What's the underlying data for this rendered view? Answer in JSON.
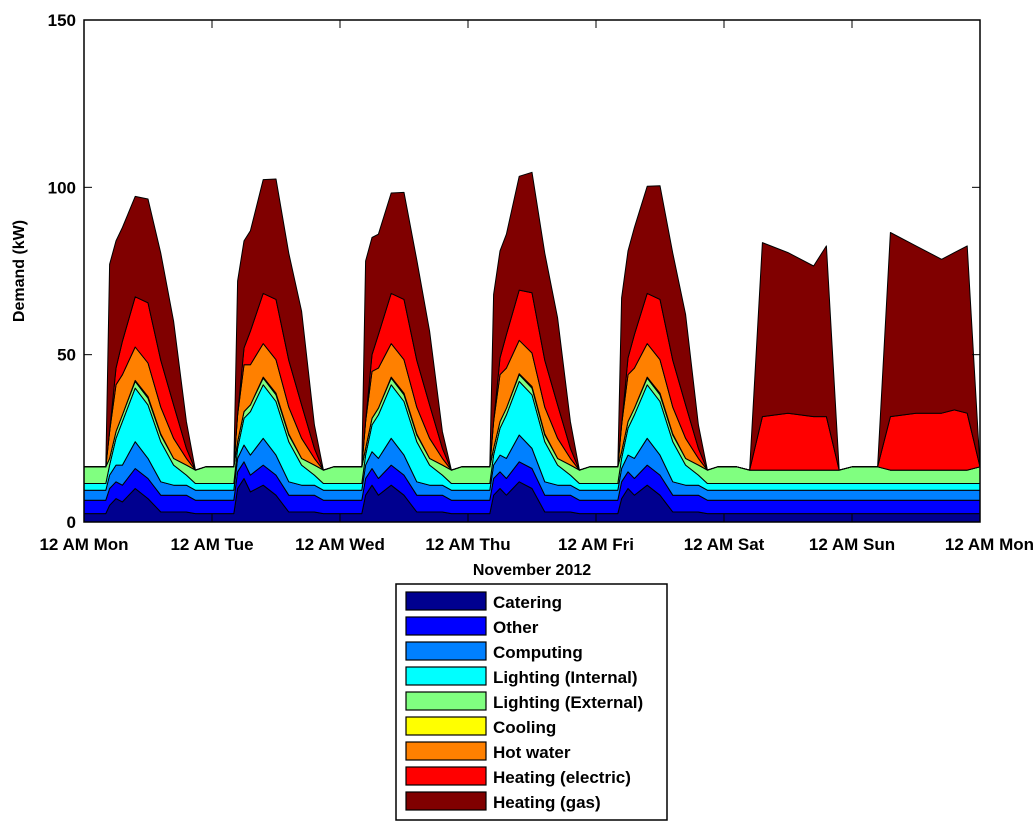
{
  "chart_data": {
    "type": "area",
    "stacked": true,
    "title": "",
    "xlabel": "November 2012",
    "ylabel": "Demand (kW)",
    "ylim": [
      0,
      150
    ],
    "yticks": [
      0,
      50,
      100,
      150
    ],
    "xlim": [
      0,
      7
    ],
    "xticks": [
      0,
      1,
      2,
      3,
      4,
      5,
      6,
      7
    ],
    "xtick_labels": [
      "12 AM Mon",
      "12 AM Tue",
      "12 AM Wed",
      "12 AM Thu",
      "12 AM Fri",
      "12 AM Sat",
      "12 AM Sun",
      "12 AM Mon"
    ],
    "grid": false,
    "legend_position": "below",
    "x_unit": "days since 12 AM Mon",
    "x": [
      0,
      0.1,
      0.17,
      0.2,
      0.25,
      0.3,
      0.4,
      0.5,
      0.6,
      0.7,
      0.8,
      0.87,
      0.95,
      1.0,
      1.1,
      1.17,
      1.2,
      1.25,
      1.3,
      1.4,
      1.5,
      1.6,
      1.7,
      1.8,
      1.87,
      1.95,
      2.0,
      2.1,
      2.17,
      2.2,
      2.25,
      2.3,
      2.4,
      2.5,
      2.6,
      2.7,
      2.8,
      2.87,
      2.95,
      3.0,
      3.1,
      3.17,
      3.2,
      3.25,
      3.3,
      3.4,
      3.5,
      3.6,
      3.7,
      3.8,
      3.87,
      3.95,
      4.0,
      4.1,
      4.17,
      4.2,
      4.25,
      4.3,
      4.4,
      4.5,
      4.6,
      4.7,
      4.8,
      4.87,
      4.95,
      5.0,
      5.1,
      5.2,
      5.3,
      5.5,
      5.7,
      5.8,
      5.9,
      6.0,
      6.1,
      6.2,
      6.3,
      6.5,
      6.7,
      6.8,
      6.9,
      7.0
    ],
    "series": [
      {
        "name": "Catering",
        "color": "#00008f",
        "values": [
          2.5,
          2.5,
          2.5,
          5,
          7,
          6,
          10,
          7,
          3,
          3,
          3,
          2.5,
          2.5,
          2.5,
          2.5,
          2.5,
          10,
          13,
          9,
          11,
          8,
          3,
          3,
          3,
          2.5,
          2.5,
          2.5,
          2.5,
          2.5,
          8,
          11,
          8,
          11,
          8,
          3,
          3,
          3,
          2.5,
          2.5,
          2.5,
          2.5,
          2.5,
          8,
          10,
          8,
          12,
          10,
          3,
          3,
          3,
          2.5,
          2.5,
          2.5,
          2.5,
          2.5,
          7,
          10,
          8,
          11,
          8,
          3,
          3,
          3,
          2.5,
          2.5,
          2.5,
          2.5,
          2.5,
          2.5,
          2.5,
          2.5,
          2.5,
          2.5,
          2.5,
          2.5,
          2.5,
          2.5,
          2.5,
          2.5,
          2.5,
          2.5,
          2.5
        ]
      },
      {
        "name": "Other",
        "color": "#0000ff",
        "values": [
          4,
          4,
          4,
          5,
          5,
          5,
          6,
          6,
          5,
          5,
          5,
          4,
          4,
          4,
          4,
          4,
          5,
          5,
          5,
          6,
          6,
          5,
          5,
          5,
          4,
          4,
          4,
          4,
          4,
          5,
          5,
          5,
          6,
          6,
          5,
          5,
          5,
          4,
          4,
          4,
          4,
          4,
          5,
          5,
          5,
          6,
          6,
          5,
          5,
          5,
          4,
          4,
          4,
          4,
          4,
          5,
          5,
          5,
          6,
          6,
          5,
          5,
          5,
          4,
          4,
          4,
          4,
          4,
          4,
          4,
          4,
          4,
          4,
          4,
          4,
          4,
          4,
          4,
          4,
          4,
          4,
          4
        ]
      },
      {
        "name": "Computing",
        "color": "#0080ff",
        "values": [
          3,
          3,
          3,
          4,
          5,
          6,
          8,
          6,
          4,
          3,
          3,
          3,
          3,
          3,
          3,
          3,
          4,
          5,
          6,
          8,
          6,
          4,
          3,
          3,
          3,
          3,
          3,
          3,
          3,
          4,
          5,
          6,
          8,
          6,
          4,
          3,
          3,
          3,
          3,
          3,
          3,
          3,
          4,
          5,
          6,
          8,
          6,
          4,
          3,
          3,
          3,
          3,
          3,
          3,
          3,
          4,
          5,
          6,
          8,
          6,
          4,
          3,
          3,
          3,
          3,
          3,
          3,
          3,
          3,
          3,
          3,
          3,
          3,
          3,
          3,
          3,
          3,
          3,
          3,
          3,
          3,
          3
        ]
      },
      {
        "name": "Lighting (Internal)",
        "color": "#00ffff",
        "values": [
          2,
          2,
          2,
          3,
          8,
          13,
          16,
          16,
          12,
          6,
          3,
          2,
          2,
          2,
          2,
          2,
          3,
          8,
          13,
          16,
          16,
          12,
          6,
          3,
          2,
          2,
          2,
          2,
          2,
          3,
          8,
          13,
          16,
          16,
          12,
          6,
          3,
          2,
          2,
          2,
          2,
          2,
          3,
          8,
          13,
          16,
          16,
          12,
          6,
          3,
          2,
          2,
          2,
          2,
          2,
          3,
          8,
          13,
          16,
          16,
          12,
          6,
          3,
          2,
          2,
          2,
          2,
          2,
          2,
          2,
          2,
          2,
          2,
          2,
          2,
          2,
          2,
          2,
          2,
          2,
          2,
          2
        ]
      },
      {
        "name": "Lighting (External)",
        "color": "#80ff80",
        "values": [
          5,
          5,
          5,
          2,
          2,
          2,
          2,
          2,
          2,
          2,
          3,
          4,
          5,
          5,
          5,
          5,
          2,
          2,
          2,
          2,
          2,
          2,
          2,
          3,
          4,
          5,
          5,
          5,
          5,
          2,
          2,
          2,
          2,
          2,
          2,
          2,
          3,
          4,
          5,
          5,
          5,
          5,
          2,
          2,
          2,
          2,
          2,
          2,
          2,
          3,
          4,
          5,
          5,
          5,
          5,
          2,
          2,
          2,
          2,
          2,
          2,
          2,
          3,
          4,
          5,
          5,
          5,
          4,
          4,
          4,
          4,
          4,
          4,
          5,
          5,
          5,
          4,
          4,
          4,
          4,
          4,
          5
        ]
      },
      {
        "name": "Cooling",
        "color": "#ffff00",
        "values": [
          0,
          0,
          0,
          0,
          0,
          0,
          0.3,
          0.5,
          0.3,
          0,
          0,
          0,
          0,
          0,
          0,
          0,
          0,
          0,
          0,
          0.3,
          0.5,
          0.3,
          0,
          0,
          0,
          0,
          0,
          0,
          0,
          0,
          0,
          0,
          0.3,
          0.5,
          0.3,
          0,
          0,
          0,
          0,
          0,
          0,
          0,
          0,
          0,
          0,
          0.3,
          0.5,
          0.3,
          0,
          0,
          0,
          0,
          0,
          0,
          0,
          0,
          0,
          0,
          0.3,
          0.5,
          0.3,
          0,
          0,
          0,
          0,
          0,
          0,
          0,
          0,
          0,
          0,
          0,
          0,
          0,
          0,
          0,
          0,
          0,
          0,
          0,
          0,
          0
        ]
      },
      {
        "name": "Hot water",
        "color": "#ff8000",
        "values": [
          0,
          0,
          0,
          8,
          14,
          12,
          10,
          10,
          8,
          6,
          2,
          0,
          0,
          0,
          0,
          0,
          8,
          14,
          12,
          10,
          10,
          8,
          6,
          2,
          0,
          0,
          0,
          0,
          0,
          8,
          14,
          12,
          10,
          10,
          8,
          6,
          2,
          0,
          0,
          0,
          0,
          0,
          8,
          14,
          12,
          10,
          10,
          8,
          6,
          2,
          0,
          0,
          0,
          0,
          0,
          8,
          14,
          12,
          10,
          10,
          8,
          6,
          2,
          0,
          0,
          0,
          0,
          0,
          0,
          0,
          0,
          0,
          0,
          0,
          0,
          0,
          0,
          0,
          0,
          0,
          0,
          0
        ]
      },
      {
        "name": "Heating (electric)",
        "color": "#ff0000",
        "values": [
          0,
          0,
          0,
          0,
          5,
          10,
          15,
          18,
          14,
          10,
          3,
          0,
          0,
          0,
          0,
          0,
          0,
          5,
          10,
          15,
          18,
          14,
          10,
          3,
          0,
          0,
          0,
          0,
          0,
          0,
          5,
          10,
          15,
          18,
          14,
          10,
          3,
          0,
          0,
          0,
          0,
          0,
          0,
          5,
          10,
          15,
          18,
          14,
          10,
          3,
          0,
          0,
          0,
          0,
          0,
          0,
          5,
          10,
          15,
          18,
          14,
          10,
          3,
          0,
          0,
          0,
          0,
          0,
          16,
          17,
          16,
          16,
          0,
          0,
          0,
          0,
          16,
          17,
          17,
          18,
          17,
          0
        ]
      },
      {
        "name": "Heating (gas)",
        "color": "#800000",
        "values": [
          0,
          0,
          0,
          50,
          38,
          34,
          30,
          31,
          32,
          25,
          8,
          0,
          0,
          0,
          0,
          0,
          40,
          32,
          30,
          34,
          36,
          32,
          28,
          7,
          0,
          0,
          0,
          0,
          0,
          48,
          35,
          30,
          30,
          32,
          30,
          22,
          5,
          0,
          0,
          0,
          0,
          0,
          38,
          32,
          30,
          34,
          36,
          32,
          26,
          8,
          0,
          0,
          0,
          0,
          0,
          38,
          32,
          32,
          32,
          34,
          32,
          27,
          7,
          0,
          0,
          0,
          0,
          0,
          52,
          48,
          45,
          51,
          0,
          0,
          0,
          0,
          55,
          50,
          46,
          47,
          50,
          0
        ]
      }
    ]
  }
}
